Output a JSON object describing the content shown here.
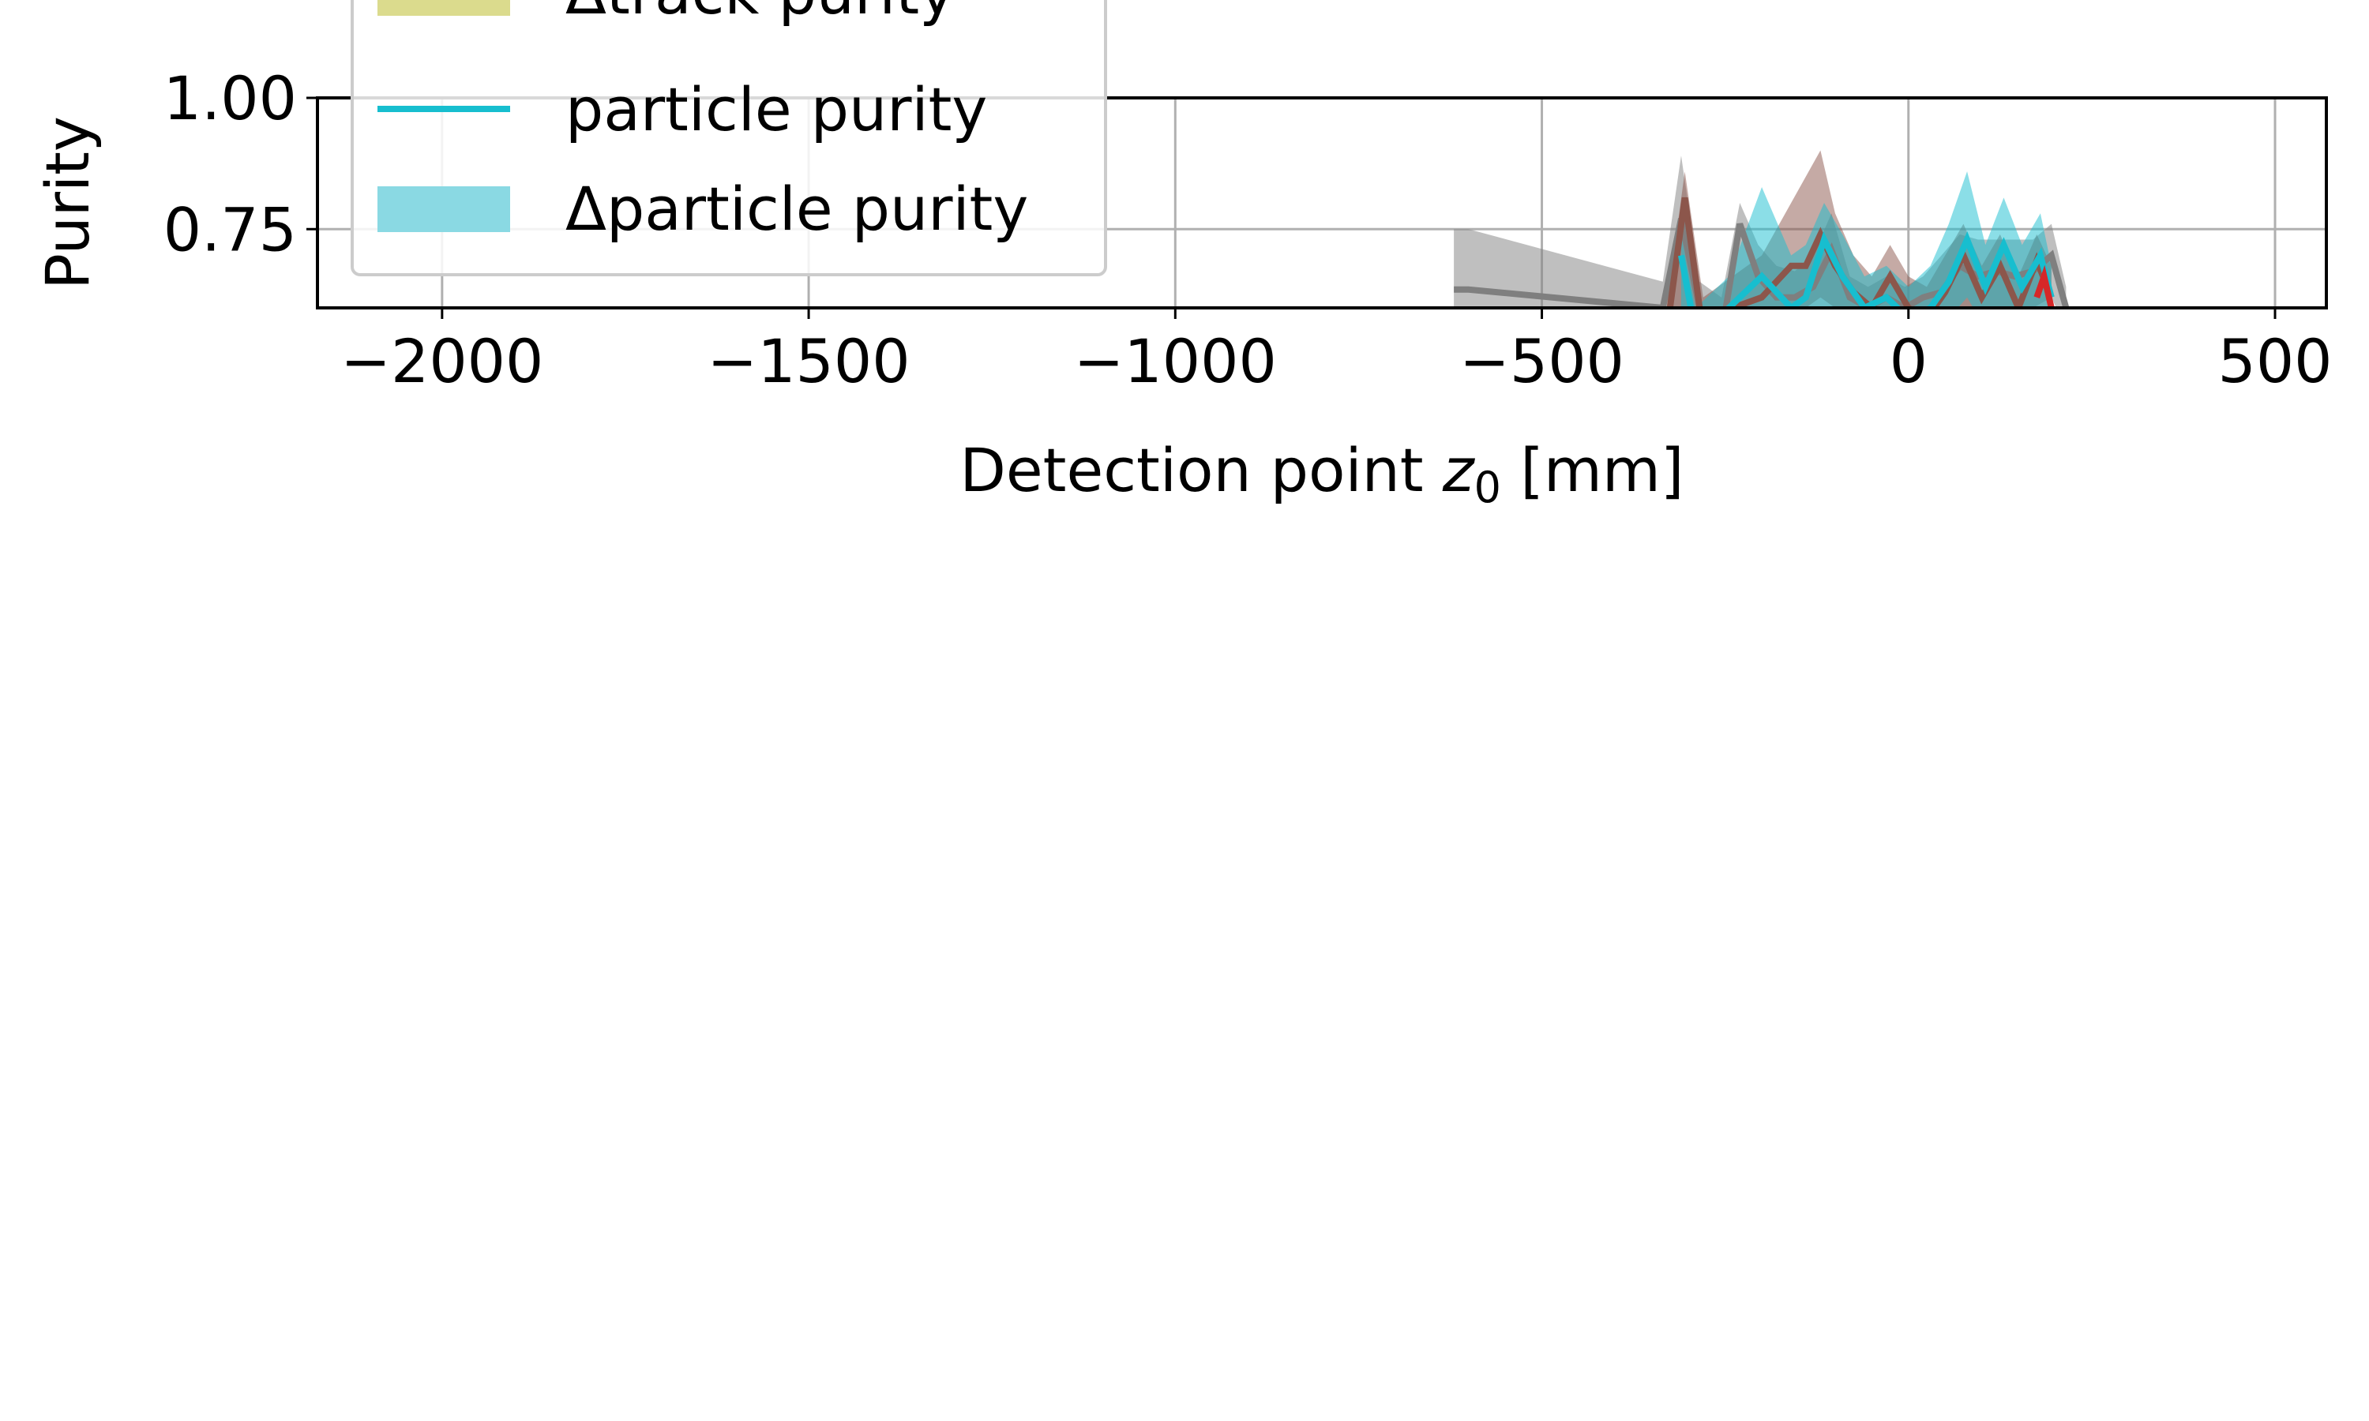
{
  "chart_data": {
    "type": "line",
    "xlabel": "Detection point",
    "xlabel_symbol": "z",
    "xlabel_subscript": "0",
    "xlabel_unit": "[mm]",
    "ylabel": "Purity",
    "xlim": [
      -2170,
      570
    ],
    "ylim": [
      0.6,
      1.0
    ],
    "x_ticks": [
      -2000,
      -1500,
      -1000,
      -500,
      0,
      500
    ],
    "x_tick_labels": [
      "−2000",
      "−1500",
      "−1000",
      "−500",
      "0",
      "500"
    ],
    "y_ticks": [
      0.75,
      1.0
    ],
    "y_tick_labels": [
      "0.75",
      "1.00"
    ],
    "grid": true,
    "legend": {
      "placement": "upper-left",
      "entries": [
        {
          "label": "Δtrack purity",
          "kind": "band",
          "color": "#dbdb8d"
        },
        {
          "label": "particle purity",
          "kind": "line",
          "color": "#17becf"
        },
        {
          "label": "Δparticle purity",
          "kind": "band",
          "color": "#8ad9e3"
        }
      ]
    },
    "series": [
      {
        "color": "#7f7f7f",
        "x": [
          -620,
          -600,
          -335,
          -310,
          -285,
          -255,
          -230,
          -205,
          -180,
          -155,
          -130,
          -105,
          -80,
          -55,
          -30,
          -5,
          20,
          45,
          70,
          95,
          120,
          145,
          170,
          195,
          215
        ],
        "y": [
          0.635,
          0.635,
          0.6,
          0.77,
          0.6,
          0.55,
          0.76,
          0.66,
          0.62,
          0.62,
          0.64,
          0.71,
          0.62,
          0.6,
          0.62,
          0.6,
          0.62,
          0.63,
          0.68,
          0.66,
          0.67,
          0.66,
          0.67,
          0.7,
          0.6
        ],
        "band_low": [
          0.6,
          0.6,
          0.55,
          0.6,
          0.55,
          0.5,
          0.6,
          0.58,
          0.56,
          0.56,
          0.58,
          0.6,
          0.56,
          0.55,
          0.56,
          0.55,
          0.56,
          0.57,
          0.6,
          0.6,
          0.6,
          0.6,
          0.6,
          0.62,
          0.56
        ],
        "band_high": [
          0.75,
          0.75,
          0.65,
          0.89,
          0.65,
          0.62,
          0.8,
          0.72,
          0.68,
          0.67,
          0.7,
          0.78,
          0.66,
          0.64,
          0.66,
          0.64,
          0.66,
          0.7,
          0.74,
          0.73,
          0.73,
          0.73,
          0.73,
          0.76,
          0.64
        ]
      },
      {
        "color": "#8c564b",
        "x": [
          -330,
          -305,
          -280,
          -240,
          -200,
          -160,
          -140,
          -120,
          -100,
          -75,
          -50,
          -25,
          0,
          25,
          50,
          75,
          100,
          125,
          150,
          175,
          195
        ],
        "y": [
          0.55,
          0.81,
          0.55,
          0.6,
          0.62,
          0.68,
          0.68,
          0.74,
          0.68,
          0.63,
          0.6,
          0.66,
          0.6,
          0.58,
          0.63,
          0.7,
          0.62,
          0.68,
          0.6,
          0.69,
          0.62
        ],
        "band_low": [
          0.5,
          0.6,
          0.5,
          0.55,
          0.56,
          0.6,
          0.6,
          0.62,
          0.6,
          0.56,
          0.54,
          0.58,
          0.54,
          0.52,
          0.56,
          0.6,
          0.55,
          0.6,
          0.54,
          0.6,
          0.55
        ],
        "band_high": [
          0.6,
          0.86,
          0.62,
          0.66,
          0.7,
          0.8,
          0.85,
          0.9,
          0.78,
          0.7,
          0.66,
          0.72,
          0.66,
          0.64,
          0.7,
          0.76,
          0.68,
          0.74,
          0.66,
          0.74,
          0.68
        ]
      },
      {
        "color": "#17becf",
        "x": [
          -310,
          -290,
          -245,
          -200,
          -160,
          -140,
          -115,
          -90,
          -60,
          -30,
          0,
          30,
          55,
          80,
          105,
          130,
          155,
          180,
          195
        ],
        "y": [
          0.7,
          0.55,
          0.6,
          0.66,
          0.6,
          0.62,
          0.73,
          0.66,
          0.6,
          0.62,
          0.58,
          0.6,
          0.65,
          0.73,
          0.64,
          0.72,
          0.64,
          0.7,
          0.62
        ],
        "band_low": [
          0.6,
          0.5,
          0.55,
          0.58,
          0.55,
          0.56,
          0.6,
          0.58,
          0.54,
          0.56,
          0.52,
          0.54,
          0.58,
          0.62,
          0.56,
          0.6,
          0.56,
          0.6,
          0.55
        ],
        "band_high": [
          0.74,
          0.6,
          0.66,
          0.83,
          0.7,
          0.72,
          0.8,
          0.74,
          0.66,
          0.68,
          0.64,
          0.68,
          0.76,
          0.86,
          0.72,
          0.81,
          0.72,
          0.78,
          0.68
        ]
      },
      {
        "color": "#d62728",
        "x": [
          175,
          185,
          195
        ],
        "y": [
          0.62,
          0.66,
          0.6
        ]
      }
    ]
  }
}
